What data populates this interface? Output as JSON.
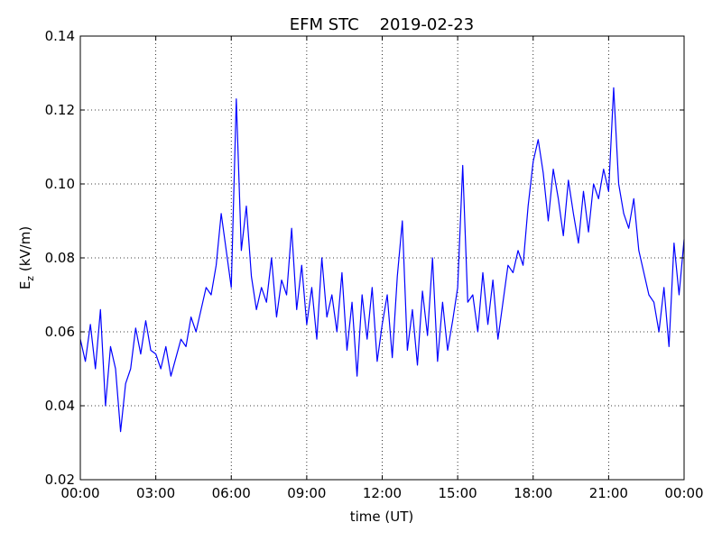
{
  "chart_data": {
    "type": "line",
    "title": "EFM STC    2019-02-23",
    "xlabel": "time (UT)",
    "ylabel": [
      "E",
      "z",
      " (kV/m)"
    ],
    "color": "#0000ff",
    "grid": true,
    "xlim": [
      0,
      24
    ],
    "xticks": [
      {
        "value": 0,
        "label": "00:00"
      },
      {
        "value": 3,
        "label": "03:00"
      },
      {
        "value": 6,
        "label": "06:00"
      },
      {
        "value": 9,
        "label": "09:00"
      },
      {
        "value": 12,
        "label": "12:00"
      },
      {
        "value": 15,
        "label": "15:00"
      },
      {
        "value": 18,
        "label": "18:00"
      },
      {
        "value": 21,
        "label": "21:00"
      },
      {
        "value": 24,
        "label": "00:00"
      }
    ],
    "ylim": [
      0.02,
      0.14
    ],
    "yticks": [
      0.02,
      0.04,
      0.06,
      0.08,
      {
        "value": 0.1,
        "label": "0.10"
      },
      0.12,
      0.14
    ],
    "x": [
      0,
      0.2,
      0.4,
      0.6,
      0.8,
      1,
      1.2,
      1.4,
      1.6,
      1.8,
      2,
      2.2,
      2.4,
      2.6,
      2.8,
      3,
      3.2,
      3.4,
      3.6,
      3.8,
      4,
      4.2,
      4.4,
      4.6,
      4.8,
      5,
      5.2,
      5.4,
      5.6,
      5.8,
      6,
      6.2,
      6.4,
      6.6,
      6.8,
      7,
      7.2,
      7.4,
      7.6,
      7.8,
      8,
      8.2,
      8.4,
      8.6,
      8.8,
      9,
      9.2,
      9.4,
      9.6,
      9.8,
      10,
      10.2,
      10.4,
      10.6,
      10.8,
      11,
      11.2,
      11.4,
      11.6,
      11.8,
      12,
      12.2,
      12.4,
      12.6,
      12.8,
      13,
      13.2,
      13.4,
      13.6,
      13.8,
      14,
      14.2,
      14.4,
      14.6,
      14.8,
      15,
      15.2,
      15.4,
      15.6,
      15.8,
      16,
      16.2,
      16.4,
      16.6,
      16.8,
      17,
      17.2,
      17.4,
      17.6,
      17.8,
      18,
      18.2,
      18.4,
      18.6,
      18.8,
      19,
      19.2,
      19.4,
      19.6,
      19.8,
      20,
      20.2,
      20.4,
      20.6,
      20.8,
      21,
      21.2,
      21.4,
      21.6,
      21.8,
      22,
      22.2,
      22.4,
      22.6,
      22.8,
      23,
      23.2,
      23.4,
      23.6,
      23.8,
      24
    ],
    "values": [
      0.058,
      0.052,
      0.062,
      0.05,
      0.066,
      0.04,
      0.056,
      0.05,
      0.033,
      0.046,
      0.05,
      0.061,
      0.054,
      0.063,
      0.055,
      0.054,
      0.05,
      0.056,
      0.048,
      0.053,
      0.058,
      0.056,
      0.064,
      0.06,
      0.066,
      0.072,
      0.07,
      0.078,
      0.092,
      0.082,
      0.072,
      0.123,
      0.082,
      0.094,
      0.075,
      0.066,
      0.072,
      0.068,
      0.08,
      0.064,
      0.074,
      0.07,
      0.088,
      0.066,
      0.078,
      0.062,
      0.072,
      0.058,
      0.08,
      0.064,
      0.07,
      0.06,
      0.076,
      0.055,
      0.068,
      0.048,
      0.07,
      0.058,
      0.072,
      0.052,
      0.062,
      0.07,
      0.053,
      0.075,
      0.09,
      0.055,
      0.066,
      0.051,
      0.071,
      0.059,
      0.08,
      0.052,
      0.068,
      0.055,
      0.063,
      0.072,
      0.105,
      0.068,
      0.07,
      0.06,
      0.076,
      0.062,
      0.074,
      0.058,
      0.068,
      0.078,
      0.076,
      0.082,
      0.078,
      0.094,
      0.106,
      0.112,
      0.103,
      0.09,
      0.104,
      0.096,
      0.086,
      0.101,
      0.092,
      0.084,
      0.098,
      0.087,
      0.1,
      0.096,
      0.104,
      0.098,
      0.126,
      0.1,
      0.092,
      0.088,
      0.096,
      0.082,
      0.076,
      0.07,
      0.068,
      0.06,
      0.072,
      0.056,
      0.084,
      0.07,
      0.085
    ]
  }
}
